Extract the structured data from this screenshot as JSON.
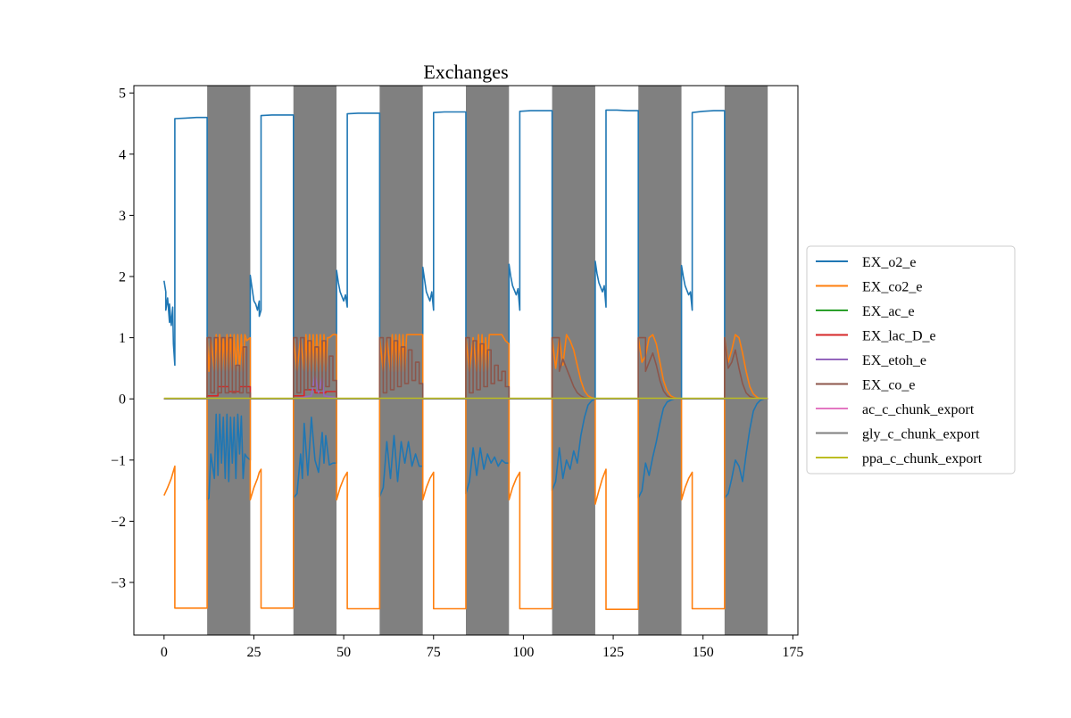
{
  "chart_data": {
    "type": "line",
    "title": "Exchanges",
    "xlabel": "",
    "ylabel": "",
    "xlim": [
      -8.4,
      176.4
    ],
    "ylim": [
      -3.86,
      5.12
    ],
    "xticks": [
      0,
      25,
      50,
      75,
      100,
      125,
      150,
      175
    ],
    "yticks": [
      -3,
      -2,
      -1,
      0,
      1,
      2,
      3,
      4,
      5
    ],
    "grid": false,
    "legend_position": "center-right-outside",
    "dark_periods": [
      [
        12,
        24
      ],
      [
        36,
        48
      ],
      [
        60,
        72
      ],
      [
        84,
        96
      ],
      [
        108,
        120
      ],
      [
        132,
        144
      ],
      [
        156,
        168
      ]
    ],
    "dark_period_color": "#808080",
    "series": [
      {
        "name": "EX_o2_e",
        "color": "#1f77b4",
        "x": [
          0,
          0.5,
          0.5,
          1,
          1.5,
          1.5,
          2,
          2.4,
          2.6,
          3,
          3,
          6,
          9,
          12,
          12,
          12.5,
          13,
          14,
          14.5,
          15,
          15.5,
          16,
          16.5,
          17,
          17.5,
          18,
          18.5,
          19,
          19.5,
          20,
          20.5,
          21,
          21.5,
          22,
          22.5,
          23,
          24,
          24,
          24.5,
          25,
          25.5,
          26,
          26.5,
          26.5,
          27,
          27,
          30,
          33,
          36,
          36,
          37,
          38,
          38.5,
          39,
          40,
          41,
          42,
          43,
          44,
          44.5,
          45,
          46,
          47,
          48,
          48,
          48.5,
          49,
          50,
          50.5,
          51,
          51,
          54,
          57,
          60,
          60,
          61,
          62,
          63,
          64,
          65,
          66,
          67,
          68,
          69,
          70,
          71,
          72,
          72,
          72.5,
          73,
          74,
          74.5,
          75,
          75,
          78,
          81,
          84,
          84,
          85,
          86,
          87,
          88,
          89,
          90,
          91,
          92,
          93,
          94,
          95,
          96,
          96,
          96.5,
          97,
          98,
          98.5,
          99,
          99,
          102,
          105,
          108,
          108,
          109,
          110,
          111,
          112,
          113,
          114,
          115,
          116,
          117,
          118,
          119,
          120,
          120,
          120.5,
          121,
          122,
          122.5,
          123,
          123,
          126,
          129,
          132,
          132,
          133,
          134,
          135,
          136,
          137,
          138,
          139,
          140,
          141,
          142,
          143,
          144,
          144,
          144.5,
          145,
          146,
          146.5,
          147,
          147,
          150,
          153,
          156,
          156,
          157,
          158,
          159,
          160,
          161,
          162,
          163,
          164,
          165,
          166,
          167,
          168
        ],
        "y": [
          1.93,
          1.75,
          1.45,
          1.65,
          1.25,
          1.55,
          1.2,
          1.5,
          0.9,
          0.55,
          4.58,
          4.59,
          4.6,
          4.6,
          -1.65,
          -1.62,
          -0.9,
          -1.3,
          -0.25,
          -1.25,
          -0.25,
          -1.05,
          -0.3,
          -1.3,
          -0.25,
          -1.35,
          -0.3,
          -1.05,
          -0.3,
          -1.3,
          -0.25,
          -0.9,
          -0.28,
          -1.3,
          -0.9,
          -0.95,
          -1.0,
          2.02,
          1.8,
          1.6,
          1.55,
          1.45,
          1.6,
          1.35,
          1.45,
          4.63,
          4.64,
          4.64,
          4.64,
          -1.62,
          -1.55,
          -0.9,
          -1.3,
          -0.4,
          -1.25,
          -0.3,
          -1.0,
          -1.2,
          -0.55,
          -1.05,
          -0.6,
          -1.08,
          -1.05,
          -1.05,
          2.1,
          1.9,
          1.75,
          1.6,
          1.7,
          1.5,
          4.66,
          4.67,
          4.67,
          4.67,
          -1.6,
          -1.45,
          -0.7,
          -1.3,
          -0.6,
          -1.35,
          -0.7,
          -1.05,
          -0.7,
          -1.1,
          -0.9,
          -1.1,
          -1.1,
          2.15,
          1.95,
          1.75,
          1.6,
          1.75,
          1.45,
          4.68,
          4.69,
          4.69,
          4.69,
          -1.55,
          -1.35,
          -0.8,
          -1.25,
          -0.8,
          -1.15,
          -0.9,
          -1.05,
          -0.95,
          -1.1,
          -1.0,
          -1.05,
          -1.05,
          2.2,
          2.0,
          1.85,
          1.7,
          1.8,
          1.45,
          4.7,
          4.71,
          4.71,
          4.71,
          -1.5,
          -1.35,
          -0.8,
          -1.3,
          -1.0,
          -1.15,
          -0.85,
          -1.05,
          -0.6,
          -0.3,
          -0.1,
          -0.03,
          0.0,
          2.25,
          2.05,
          1.9,
          1.75,
          1.85,
          1.5,
          4.72,
          4.72,
          4.71,
          4.71,
          -1.62,
          -1.5,
          -1.05,
          -1.25,
          -0.95,
          -0.7,
          -0.4,
          -0.15,
          -0.05,
          -0.02,
          0.0,
          0.0,
          0.0,
          2.18,
          2.0,
          1.85,
          1.7,
          1.75,
          1.45,
          4.68,
          4.7,
          4.71,
          4.71,
          -1.62,
          -1.55,
          -1.3,
          -1.0,
          -1.1,
          -1.35,
          -0.9,
          -0.5,
          -0.2,
          -0.08,
          -0.02,
          0.0,
          0.0
        ]
      },
      {
        "name": "EX_co2_e",
        "color": "#ff7f0e",
        "x": [
          0,
          1,
          2,
          2.5,
          3,
          3,
          6,
          9,
          12,
          12,
          12.5,
          13,
          14,
          14.5,
          15,
          15.5,
          16,
          16.5,
          17,
          17.5,
          18,
          18.5,
          19,
          19.5,
          20,
          20.5,
          21,
          21.5,
          22,
          22.5,
          23,
          24,
          24,
          25,
          26,
          26.5,
          27,
          27,
          30,
          33,
          36,
          36,
          37,
          38,
          39,
          39.5,
          40,
          40.5,
          41,
          41.5,
          42,
          42.5,
          43,
          43.5,
          44,
          44.5,
          45,
          45.5,
          46,
          47,
          48,
          48,
          49,
          50,
          51,
          51,
          54,
          57,
          60,
          60,
          61,
          62,
          63,
          63.5,
          64,
          64.5,
          65,
          65.5,
          66,
          66.5,
          67,
          67.5,
          68,
          69,
          70,
          71,
          72,
          72,
          73,
          74,
          75,
          75,
          78,
          81,
          84,
          84,
          85,
          86,
          87,
          87.5,
          88,
          88.5,
          89,
          89.5,
          90,
          90.5,
          91,
          92,
          93,
          94,
          95,
          96,
          96,
          97,
          98,
          99,
          99,
          102,
          105,
          108,
          108,
          109,
          110,
          111,
          112,
          113,
          114,
          115,
          116,
          117,
          118,
          119,
          120,
          120,
          121,
          122,
          123,
          123,
          126,
          129,
          132,
          132,
          133,
          134,
          135,
          136,
          137,
          138,
          139,
          140,
          141,
          142,
          143,
          144,
          144,
          145,
          146,
          147,
          147,
          150,
          153,
          156,
          156,
          157,
          158,
          159,
          160,
          161,
          162,
          163,
          164,
          165,
          166,
          167,
          168
        ],
        "y": [
          -1.58,
          -1.45,
          -1.3,
          -1.2,
          -1.1,
          -3.42,
          -3.42,
          -3.42,
          -3.42,
          1.0,
          0.45,
          1.0,
          0.45,
          1.05,
          0.45,
          1.05,
          0.45,
          1.0,
          0.45,
          1.05,
          0.45,
          1.05,
          0.45,
          1.05,
          0.45,
          1.05,
          0.45,
          1.05,
          0.45,
          1.05,
          0.95,
          1.0,
          -1.65,
          -1.45,
          -1.3,
          -1.2,
          -1.15,
          -3.42,
          -3.42,
          -3.42,
          -3.42,
          1.0,
          0.45,
          1.0,
          0.45,
          1.05,
          0.45,
          1.05,
          0.45,
          1.05,
          0.45,
          1.05,
          0.45,
          1.05,
          0.45,
          1.05,
          0.45,
          1.0,
          1.0,
          1.05,
          1.05,
          -1.65,
          -1.45,
          -1.3,
          -1.2,
          -3.43,
          -3.43,
          -3.43,
          -3.43,
          1.0,
          0.45,
          1.0,
          0.45,
          1.05,
          0.45,
          1.05,
          0.45,
          1.05,
          0.45,
          1.05,
          0.45,
          1.05,
          1.05,
          1.05,
          1.05,
          1.05,
          1.05,
          -1.65,
          -1.45,
          -1.3,
          -1.2,
          -3.43,
          -3.43,
          -3.43,
          -3.43,
          1.0,
          0.45,
          1.0,
          0.45,
          1.05,
          0.45,
          1.05,
          0.45,
          1.0,
          0.45,
          1.05,
          1.05,
          1.05,
          1.05,
          1.05,
          0.95,
          0.9,
          -1.65,
          -1.45,
          -1.3,
          -1.2,
          -3.43,
          -3.43,
          -3.43,
          -3.43,
          1.0,
          0.5,
          1.0,
          0.55,
          1.05,
          0.95,
          0.8,
          0.55,
          0.3,
          0.13,
          0.05,
          0.02,
          0.0,
          -1.72,
          -1.5,
          -1.3,
          -1.15,
          -3.44,
          -3.44,
          -3.44,
          -3.44,
          1.0,
          0.6,
          0.7,
          1.0,
          1.05,
          0.9,
          0.6,
          0.3,
          0.13,
          0.05,
          0.02,
          0.0,
          0.0,
          -1.65,
          -1.45,
          -1.3,
          -1.2,
          -3.43,
          -3.43,
          -3.43,
          -3.43,
          1.0,
          0.6,
          0.8,
          1.05,
          1.0,
          0.75,
          0.45,
          0.2,
          0.08,
          0.03,
          0.0,
          0.0,
          0.0
        ]
      },
      {
        "name": "EX_ac_e",
        "color": "#2ca02c",
        "x": [
          0,
          168
        ],
        "y": [
          0.0,
          0.0
        ]
      },
      {
        "name": "EX_lac_D_e",
        "color": "#d62728",
        "x": [
          0,
          12,
          12,
          15,
          15,
          18,
          18,
          21,
          21,
          24,
          24,
          36,
          36,
          39,
          39,
          42,
          42,
          45,
          45,
          48,
          48,
          168
        ],
        "y": [
          0,
          0,
          0.05,
          0.05,
          0.2,
          0.2,
          0.12,
          0.12,
          0.2,
          0.2,
          0,
          0,
          0.05,
          0.05,
          0.15,
          0.15,
          0.1,
          0.1,
          0.12,
          0.12,
          0,
          0
        ]
      },
      {
        "name": "EX_etoh_e",
        "color": "#9467bd",
        "x": [
          0,
          36,
          36,
          41,
          42,
          43,
          44,
          44.5,
          48,
          48,
          168
        ],
        "y": [
          0,
          0,
          0.0,
          0.05,
          0.38,
          0.1,
          0.35,
          0.05,
          0.02,
          0,
          0
        ]
      },
      {
        "name": "EX_co_e",
        "color": "#8c564b",
        "x": [
          0,
          12,
          12,
          13,
          13,
          14,
          14,
          15,
          15,
          16,
          16,
          17,
          17,
          18,
          18,
          19,
          19,
          20,
          20,
          21,
          21,
          22,
          22,
          23,
          23,
          24,
          24,
          36,
          36,
          37,
          37,
          38,
          38,
          39,
          39,
          40,
          40,
          41,
          41,
          42,
          42,
          43,
          43,
          44,
          44,
          45,
          45,
          46,
          46,
          47,
          47,
          48,
          48,
          60,
          60,
          61,
          61,
          62,
          62,
          63,
          63,
          64,
          64,
          65,
          65,
          66,
          66,
          67,
          67,
          68,
          68,
          69,
          69,
          70,
          70,
          71,
          71,
          72,
          72,
          84,
          84,
          85,
          85,
          86,
          86,
          87,
          87,
          88,
          88,
          89,
          89,
          90,
          90,
          91,
          91,
          92,
          92,
          93,
          93,
          94,
          94,
          95,
          95,
          96,
          96,
          108,
          108,
          110,
          110,
          111,
          112,
          113,
          114,
          115,
          116,
          117,
          118,
          119,
          120,
          132,
          132,
          134,
          134,
          135,
          136,
          137,
          138,
          139,
          140,
          141,
          142,
          143,
          144,
          156,
          156,
          157,
          158,
          159,
          160,
          161,
          162,
          163,
          164,
          165,
          166,
          167,
          168
        ],
        "y": [
          0,
          0,
          1.0,
          1.0,
          0.1,
          0.1,
          1.0,
          1.0,
          0.1,
          0.1,
          1.0,
          1.0,
          0.1,
          0.1,
          1.0,
          1.0,
          0.1,
          0.1,
          0.55,
          0.55,
          0.1,
          0.1,
          0.85,
          0.85,
          0.1,
          0.1,
          0,
          0,
          1.0,
          1.0,
          0.1,
          0.1,
          1.0,
          1.0,
          0.15,
          0.15,
          0.95,
          0.95,
          0.2,
          0.2,
          0.85,
          0.85,
          0.15,
          0.15,
          0.95,
          0.95,
          0.2,
          0.2,
          0.7,
          0.7,
          0.3,
          0.3,
          0,
          0,
          1.0,
          1.0,
          0.1,
          0.1,
          1.0,
          1.0,
          0.15,
          0.15,
          0.95,
          0.95,
          0.2,
          0.2,
          0.85,
          0.85,
          0.25,
          0.25,
          0.8,
          0.8,
          0.3,
          0.3,
          0.6,
          0.6,
          0.25,
          0.25,
          0,
          0,
          1.0,
          1.0,
          0.1,
          0.1,
          0.95,
          0.95,
          0.15,
          0.15,
          0.9,
          0.9,
          0.2,
          0.2,
          0.8,
          0.8,
          0.25,
          0.25,
          0.55,
          0.55,
          0.3,
          0.3,
          0.45,
          0.45,
          0.2,
          0.2,
          0,
          0,
          1.0,
          1.0,
          0.45,
          0.65,
          0.5,
          0.35,
          0.2,
          0.1,
          0.05,
          0.02,
          0.01,
          0.0,
          0,
          0,
          1.0,
          1.0,
          0.45,
          0.6,
          0.75,
          0.55,
          0.3,
          0.13,
          0.05,
          0.02,
          0.01,
          0.0,
          0,
          0,
          1.0,
          0.5,
          0.6,
          0.8,
          0.5,
          0.25,
          0.1,
          0.04,
          0.02,
          0.0,
          0.0,
          0.0,
          0.0
        ]
      },
      {
        "name": "ac_c_chunk_export",
        "color": "#e377c2",
        "x": [
          0,
          168
        ],
        "y": [
          0.0,
          0.0
        ]
      },
      {
        "name": "gly_c_chunk_export",
        "color": "#7f7f7f",
        "x": [
          0,
          168
        ],
        "y": [
          0.0,
          0.0
        ]
      },
      {
        "name": "ppa_c_chunk_export",
        "color": "#bcbd22",
        "x": [
          0,
          168
        ],
        "y": [
          0.01,
          0.01
        ]
      }
    ]
  }
}
